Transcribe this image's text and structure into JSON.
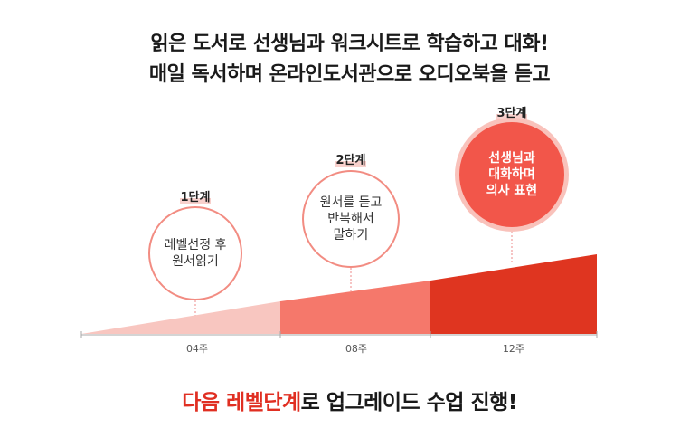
{
  "headline": {
    "line1": "읽은 도서로 선생님과 워크시트로 학습하고 대화!",
    "line2": "매일 독서하며 온라인도서관으로 오디오북을 듣고"
  },
  "stages": [
    {
      "label": "1단계",
      "text": "레벨선정 후\n원서읽기",
      "color": "#f8c6c0"
    },
    {
      "label": "2단계",
      "text": "원서를 듣고\n반복해서\n말하기",
      "color": "#f5786b"
    },
    {
      "label": "3단계",
      "text": "선생님과\n대화하며\n의사 표현",
      "color": "#df3520"
    }
  ],
  "timeline": {
    "ticks": [
      "04주",
      "08주",
      "12주"
    ],
    "axis_color": "#aaaaaa"
  },
  "footer": {
    "accent": "다음 레벨단계",
    "rest": "로 업그레이드 수업 진행!"
  }
}
